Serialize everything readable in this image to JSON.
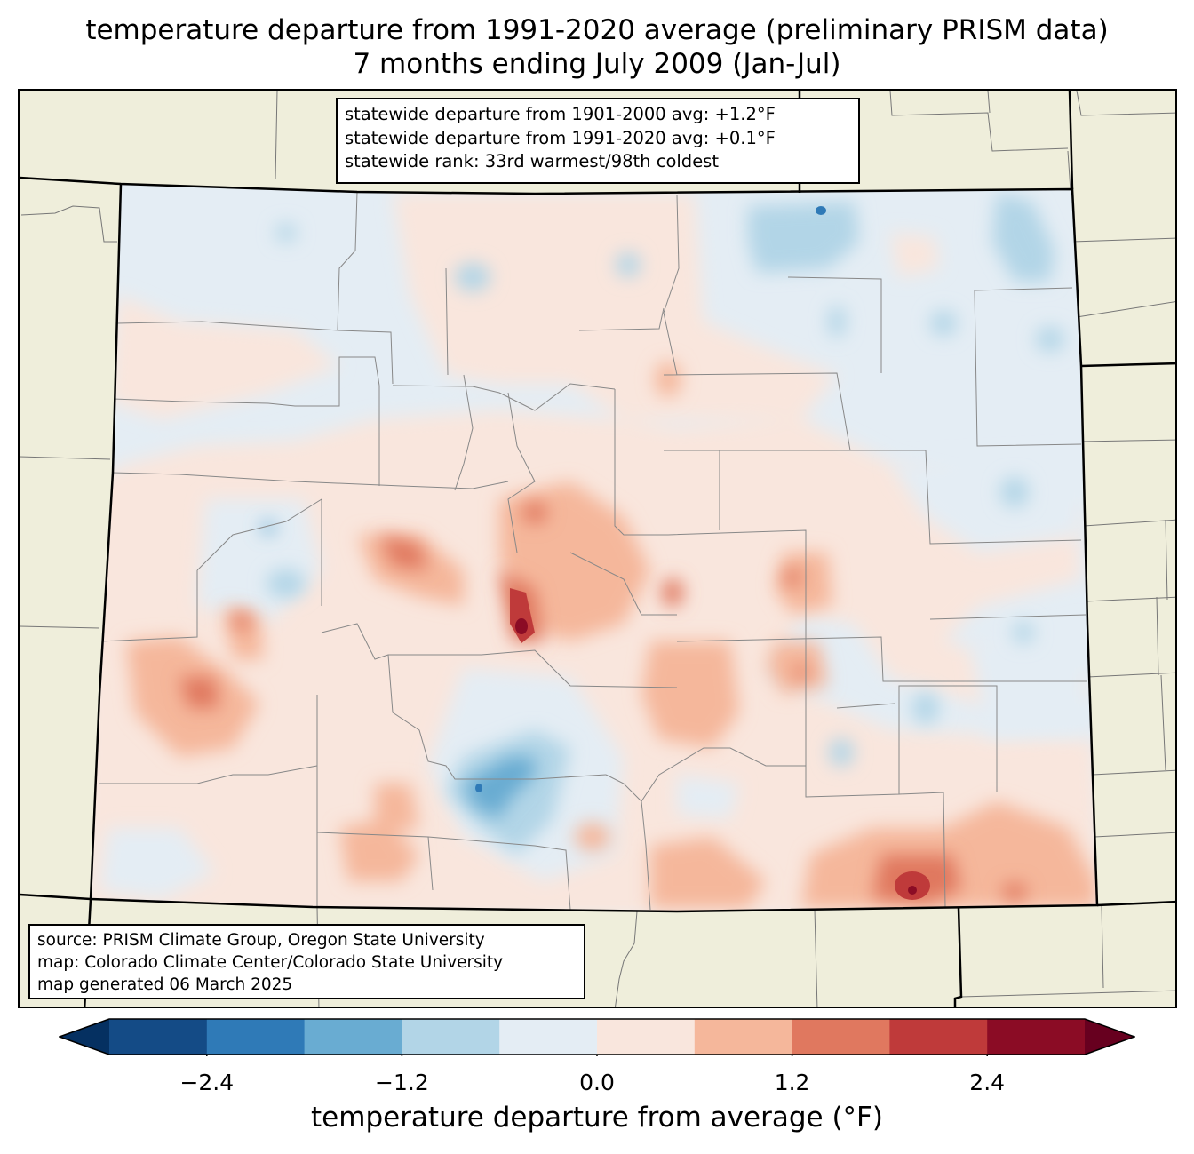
{
  "title": {
    "line1": "temperature departure from 1991-2020 average (preliminary PRISM data)",
    "line2": "7 months ending July 2009 (Jan-Jul)"
  },
  "stats_box": {
    "line1": "statewide departure from 1901-2000 avg: +1.2°F",
    "line2": "statewide departure from 1991-2020 avg: +0.1°F",
    "line3": "statewide rank: 33rd warmest/98th coldest"
  },
  "source_box": {
    "line1": "source: PRISM Climate Group, Oregon State University",
    "line2": "map: Colorado Climate Center/Colorado State University",
    "line3": "map generated 06 March 2025"
  },
  "colorbar": {
    "label": "temperature departure from average (°F)",
    "ticks": [
      "−2.4",
      "−1.2",
      "0.0",
      "1.2",
      "2.4"
    ],
    "tick_values": [
      -2.4,
      -1.2,
      0.0,
      1.2,
      2.4
    ],
    "range": [
      -3.0,
      3.0
    ],
    "colors": [
      "#053061",
      "#144b86",
      "#2f7ab7",
      "#69acd2",
      "#b2d5e7",
      "#e4edf4",
      "#f9e6dd",
      "#f5b79b",
      "#e0785f",
      "#bf3a3a",
      "#8b0c25",
      "#67001f"
    ]
  },
  "map": {
    "land_color": "#efeedb",
    "state_border_color": "#000000",
    "county_line_color": "#888888"
  }
}
